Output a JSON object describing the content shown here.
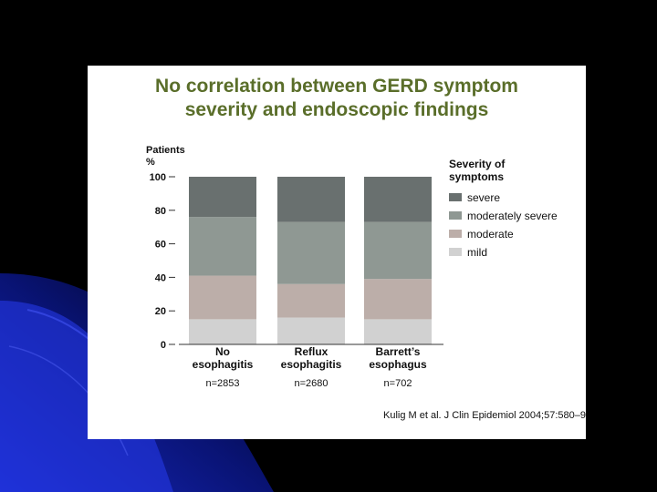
{
  "slide": {
    "title_line1": "No correlation between GERD symptom",
    "title_line2": "severity and endoscopic findings",
    "citation": "Kulig M et al. J Clin Epidemiol 2004;57:580–9"
  },
  "colors": {
    "title": "#5a6e2a",
    "severe": "#69706f",
    "moderately_severe": "#8f9893",
    "moderate": "#bcaea9",
    "mild": "#d1d1d1"
  },
  "chart_data": {
    "type": "bar",
    "stacked": true,
    "ylabel_line1": "Patients",
    "ylabel_line2": "%",
    "ylim": [
      0,
      100
    ],
    "yticks": [
      "0",
      "20",
      "40",
      "60",
      "80",
      "100"
    ],
    "categories": [
      {
        "line1": "No",
        "line2": "esophagitis",
        "n": "n=2853"
      },
      {
        "line1": "Reflux",
        "line2": "esophagitis",
        "n": "n=2680"
      },
      {
        "line1": "Barrett’s",
        "line2": "esophagus",
        "n": "n=702"
      }
    ],
    "legend_title_line1": "Severity of",
    "legend_title_line2": "symptoms",
    "legend_position": "right",
    "series": [
      {
        "name": "mild",
        "color": "#d1d1d1",
        "values": [
          15,
          16,
          15
        ]
      },
      {
        "name": "moderate",
        "color": "#bcaea9",
        "values": [
          26,
          20,
          24
        ]
      },
      {
        "name": "moderately severe",
        "color": "#8f9893",
        "values": [
          35,
          37,
          34
        ]
      },
      {
        "name": "severe",
        "color": "#69706f",
        "values": [
          24,
          27,
          27
        ]
      }
    ],
    "legend_order": [
      "severe",
      "moderately severe",
      "moderate",
      "mild"
    ]
  }
}
